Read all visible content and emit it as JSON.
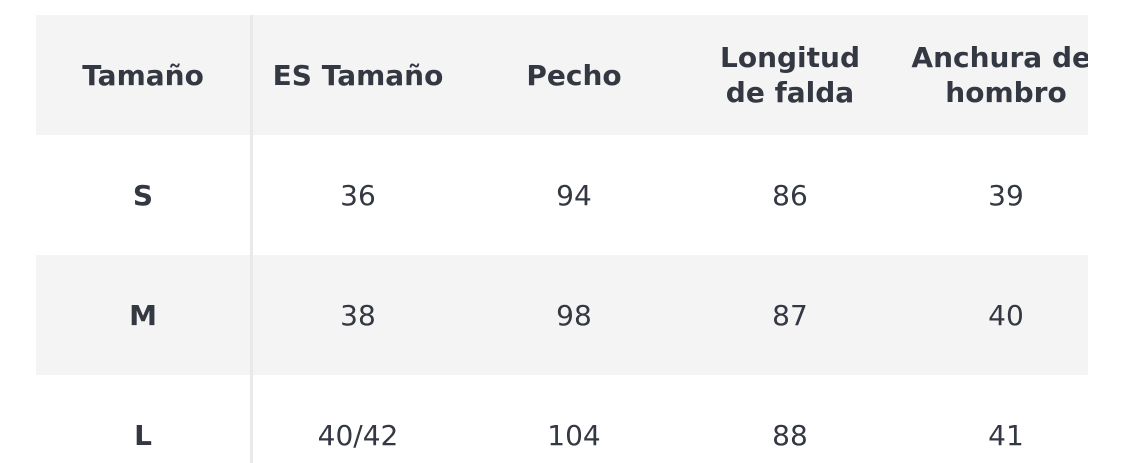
{
  "table": {
    "headers": [
      "Tamaño",
      "ES Tamaño",
      "Pecho",
      "Longitud de falda",
      "Anchura del hombro"
    ],
    "rows": [
      [
        "S",
        "36",
        "94",
        "86",
        "39"
      ],
      [
        "M",
        "38",
        "98",
        "87",
        "40"
      ],
      [
        "L",
        "40/42",
        "104",
        "88",
        "41"
      ]
    ]
  },
  "colors": {
    "text": "#333842",
    "stripe": "#f4f4f4",
    "divider": "#e9e9e9"
  }
}
